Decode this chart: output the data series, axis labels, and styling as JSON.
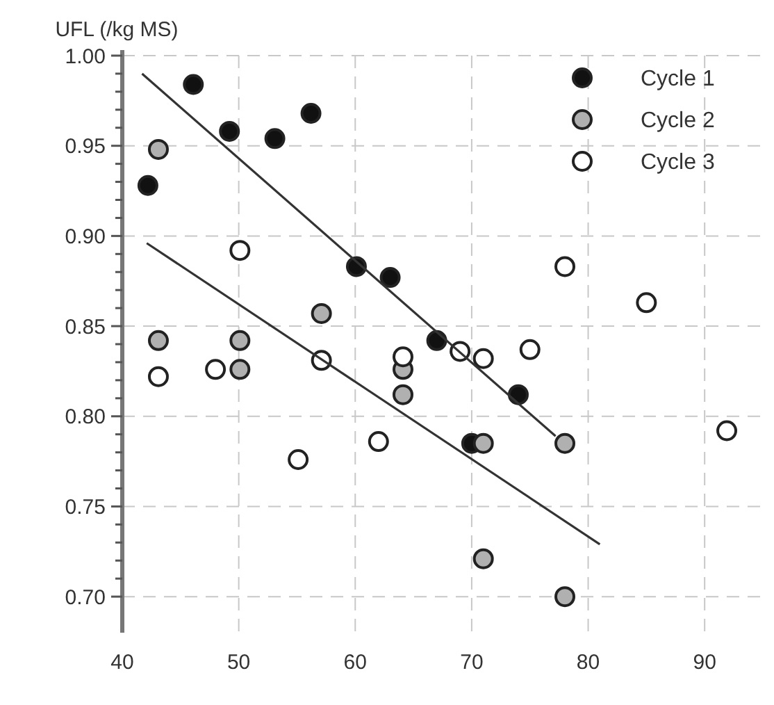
{
  "chart_data": {
    "type": "scatter",
    "ylabel": "UFL (/kg MS)",
    "xlim": [
      40,
      95
    ],
    "ylim": [
      0.68,
      1.0
    ],
    "xticks": [
      40,
      50,
      60,
      70,
      80,
      90
    ],
    "yticks": [
      {
        "value": 0.7,
        "label": "0.70"
      },
      {
        "value": 0.71,
        "label": null
      },
      {
        "value": 0.72,
        "label": null
      },
      {
        "value": 0.73,
        "label": null
      },
      {
        "value": 0.74,
        "label": null
      },
      {
        "value": 0.75,
        "label": "0.75"
      },
      {
        "value": 0.76,
        "label": null
      },
      {
        "value": 0.77,
        "label": null
      },
      {
        "value": 0.78,
        "label": null
      },
      {
        "value": 0.79,
        "label": null
      },
      {
        "value": 0.8,
        "label": "0.80"
      },
      {
        "value": 0.81,
        "label": null
      },
      {
        "value": 0.82,
        "label": null
      },
      {
        "value": 0.83,
        "label": null
      },
      {
        "value": 0.84,
        "label": null
      },
      {
        "value": 0.85,
        "label": "0.85"
      },
      {
        "value": 0.86,
        "label": null
      },
      {
        "value": 0.87,
        "label": null
      },
      {
        "value": 0.88,
        "label": null
      },
      {
        "value": 0.89,
        "label": null
      },
      {
        "value": 0.9,
        "label": "0.90"
      },
      {
        "value": 0.91,
        "label": null
      },
      {
        "value": 0.92,
        "label": null
      },
      {
        "value": 0.93,
        "label": null
      },
      {
        "value": 0.94,
        "label": null
      },
      {
        "value": 0.95,
        "label": "0.95"
      },
      {
        "value": 0.96,
        "label": null
      },
      {
        "value": 0.97,
        "label": null
      },
      {
        "value": 0.98,
        "label": null
      },
      {
        "value": 0.99,
        "label": null
      },
      {
        "value": 1.0,
        "label": "1.00"
      }
    ],
    "grid": true,
    "legend": "top right",
    "marker": "circle",
    "series": [
      {
        "name": "Cycle 1",
        "color": "#111111",
        "x": [
          42.2,
          46.1,
          49.2,
          53.1,
          56.2,
          60.1,
          63.0,
          67.0,
          74.0,
          70.0
        ],
        "values": [
          0.928,
          0.984,
          0.958,
          0.954,
          0.968,
          0.883,
          0.877,
          0.842,
          0.812,
          0.785
        ]
      },
      {
        "name": "Cycle 2",
        "color": "#b0b0b0",
        "x": [
          43.1,
          43.1,
          50.1,
          50.1,
          57.1,
          64.1,
          64.1,
          71.0,
          78.0,
          71.0,
          78.0
        ],
        "values": [
          0.948,
          0.842,
          0.842,
          0.826,
          0.857,
          0.812,
          0.826,
          0.785,
          0.785,
          0.721,
          0.7
        ]
      },
      {
        "name": "Cycle 3",
        "color": "#ffffff",
        "x": [
          43.1,
          48.0,
          50.1,
          57.1,
          55.1,
          62.0,
          64.1,
          69.0,
          71.0,
          75.0,
          78.0,
          85.0,
          91.9
        ],
        "values": [
          0.822,
          0.826,
          0.892,
          0.831,
          0.776,
          0.786,
          0.833,
          0.836,
          0.832,
          0.837,
          0.883,
          0.863,
          0.792
        ]
      },
      {
        "type": "line",
        "color": "#333333",
        "x": [
          41.7,
          77.2
        ],
        "values": [
          0.99,
          0.789
        ],
        "marker": "none",
        "line_style": "solid"
      },
      {
        "type": "line",
        "color": "#333333",
        "x": [
          42.1,
          81.0
        ],
        "values": [
          0.896,
          0.729
        ],
        "marker": "none",
        "line_style": "solid"
      }
    ]
  }
}
